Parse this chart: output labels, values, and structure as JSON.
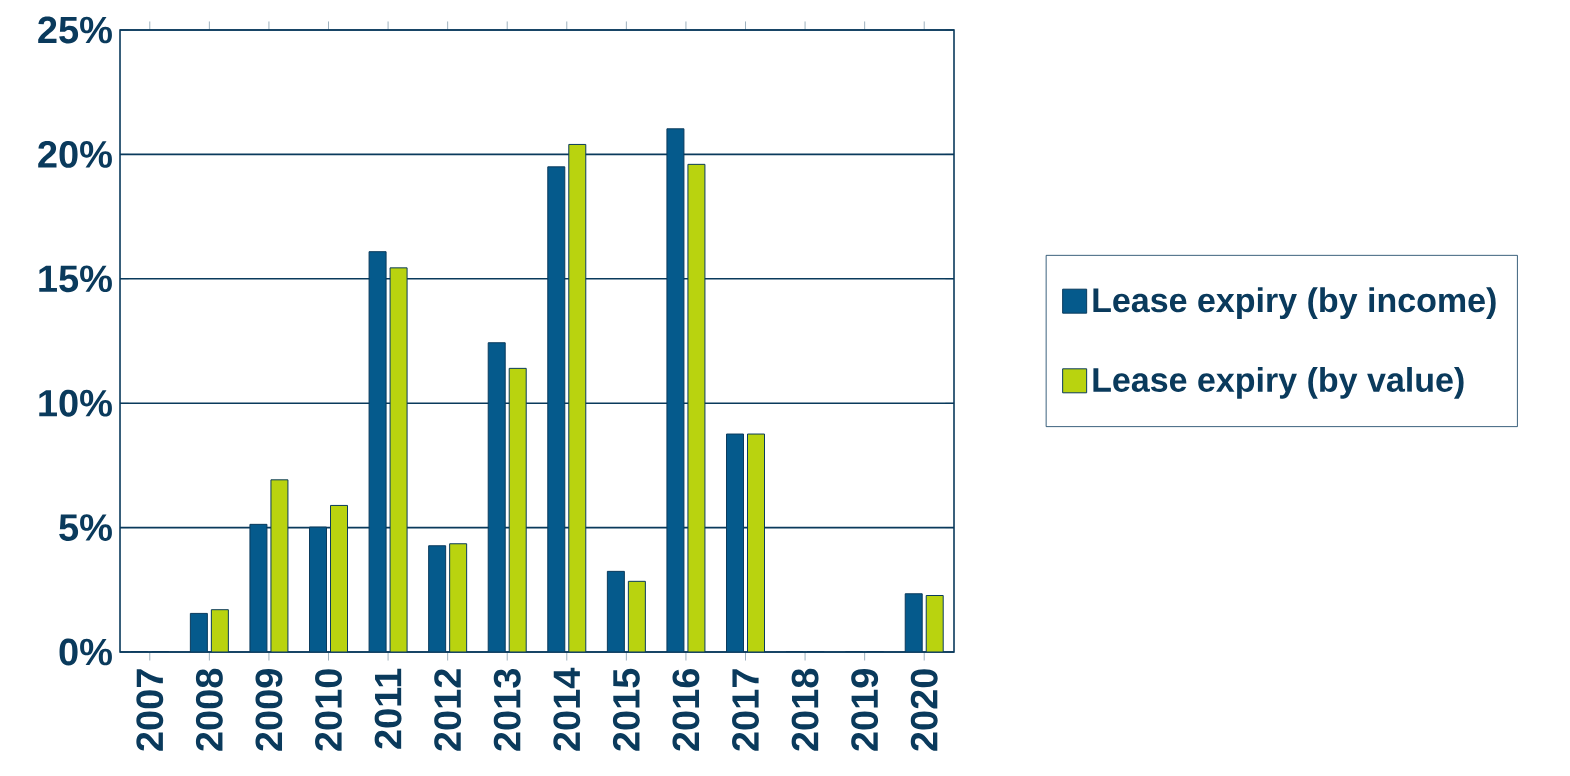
{
  "chart_data": {
    "type": "bar",
    "categories": [
      "2007",
      "2008",
      "2009",
      "2010",
      "2011",
      "2012",
      "2013",
      "2014",
      "2015",
      "2016",
      "2017",
      "2018",
      "2019",
      "2020"
    ],
    "series": [
      {
        "name": "Lease expiry (by income)",
        "color": "#055a8c",
        "values": [
          0,
          1.55,
          5.13,
          5.02,
          16.09,
          4.27,
          12.43,
          19.5,
          3.24,
          21.03,
          8.76,
          0,
          0,
          2.34
        ]
      },
      {
        "name": "Lease expiry (by value)",
        "color": "#b9d30f",
        "values": [
          0,
          1.7,
          6.92,
          5.89,
          15.44,
          4.35,
          11.4,
          20.4,
          2.84,
          19.6,
          8.76,
          0,
          0,
          2.27
        ]
      }
    ],
    "ylim": [
      0,
      25
    ],
    "yticks": [
      {
        "value": 0,
        "label": "0%"
      },
      {
        "value": 5,
        "label": "5%"
      },
      {
        "value": 10,
        "label": "10%"
      },
      {
        "value": 15,
        "label": "15%"
      },
      {
        "value": 20,
        "label": "20%"
      },
      {
        "value": 25,
        "label": "25%"
      }
    ],
    "grid": "y",
    "legend": "right"
  }
}
